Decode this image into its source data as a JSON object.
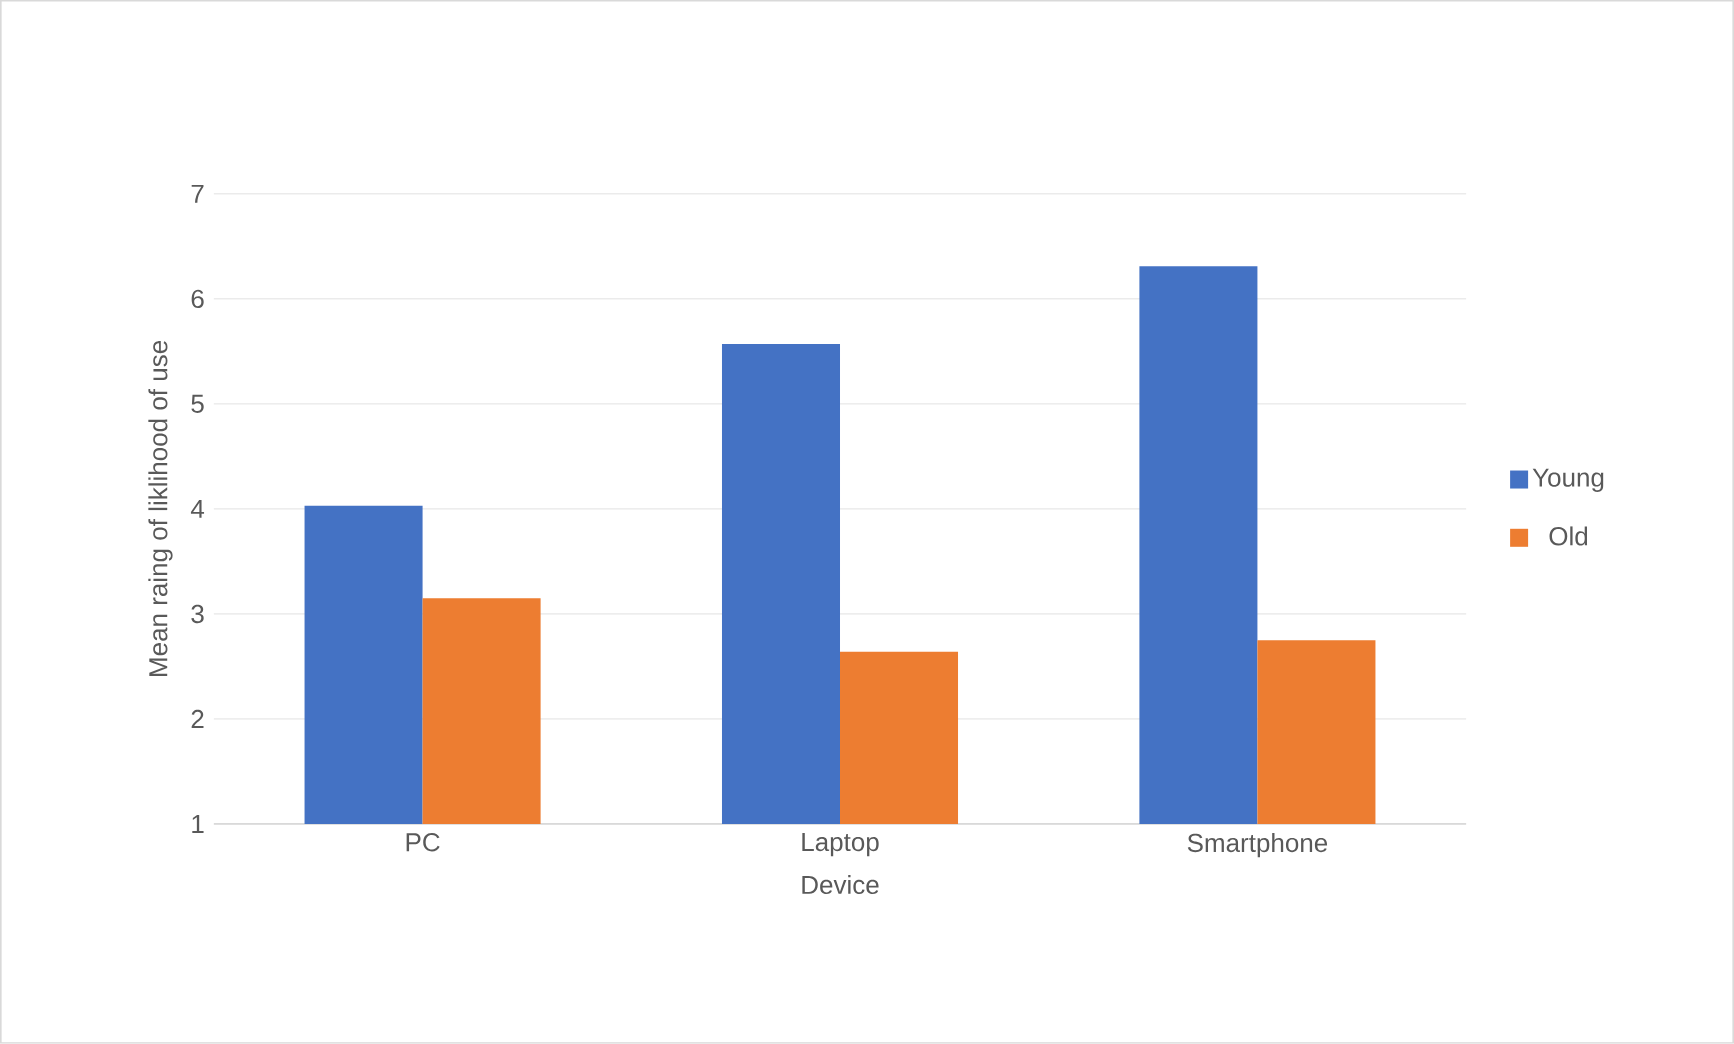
{
  "chart_data": {
    "type": "bar",
    "xlabel": "Device",
    "ylabel": "Mean raing of liklihood of use",
    "categories": [
      "PC",
      "Laptop",
      "Smartphone"
    ],
    "series": [
      {
        "name": "Young",
        "color": "#4472c4",
        "values": [
          4.03,
          5.57,
          6.31
        ]
      },
      {
        "name": "Old",
        "color": "#ed7d31",
        "values": [
          3.15,
          2.64,
          2.75
        ]
      }
    ],
    "ylim": [
      1,
      7
    ],
    "yticks": [
      1,
      2,
      3,
      4,
      5,
      6,
      7
    ],
    "grid": "y",
    "legend": "right"
  }
}
